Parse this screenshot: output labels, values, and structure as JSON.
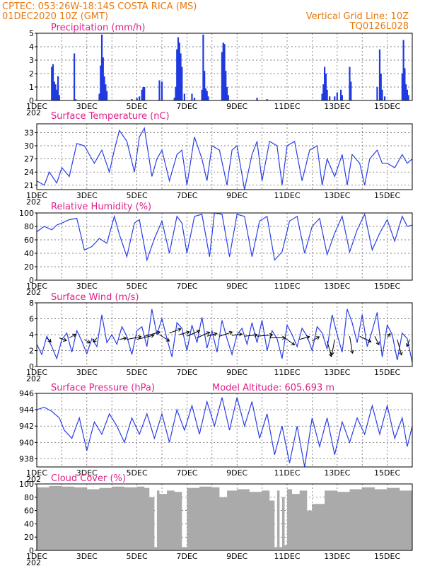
{
  "header": {
    "line1_left": "CPTEC:   053:26W-18:14S   COSTA RICA (MS)",
    "line2_left": "01DEC2020 10Z (GMT)",
    "line2_right": "Vertical Grid Line: 10Z",
    "line3_right": "TQ0126L028"
  },
  "colors": {
    "header": "#e87a10",
    "title": "#e0208a",
    "series": "#2a3ee8",
    "bars": "#1f3be0",
    "cloud": "#aaaaaa"
  },
  "x_axis": {
    "start_day": 1,
    "end_day": 16,
    "tick_labels": [
      {
        "day": 1,
        "label": "1DEC"
      },
      {
        "day": 3,
        "label": "3DEC"
      },
      {
        "day": 5,
        "label": "5DEC"
      },
      {
        "day": 7,
        "label": "7DEC"
      },
      {
        "day": 9,
        "label": "9DEC"
      },
      {
        "day": 11,
        "label": "11DEC"
      },
      {
        "day": 13,
        "label": "13DEC"
      },
      {
        "day": 15,
        "label": "15DEC"
      }
    ],
    "year_fragment": "202"
  },
  "chart_data": [
    {
      "type": "bar",
      "title": "Precipitation (mm/h)",
      "ylim": [
        0,
        5
      ],
      "yticks": [
        0,
        1,
        2,
        3,
        4,
        5
      ],
      "bars": [
        [
          1.6,
          2.5
        ],
        [
          1.65,
          2.7
        ],
        [
          1.7,
          1.4
        ],
        [
          1.75,
          1.2
        ],
        [
          1.8,
          0.8
        ],
        [
          1.85,
          1.8
        ],
        [
          1.9,
          0.4
        ],
        [
          2.5,
          3.5
        ],
        [
          2.55,
          0.1
        ],
        [
          3.5,
          0.5
        ],
        [
          3.55,
          2.6
        ],
        [
          3.6,
          4.9
        ],
        [
          3.65,
          3.2
        ],
        [
          3.7,
          1.8
        ],
        [
          3.75,
          1.2
        ],
        [
          3.8,
          0.7
        ],
        [
          4.8,
          0.1
        ],
        [
          5.0,
          0.2
        ],
        [
          5.1,
          0.3
        ],
        [
          5.2,
          0.8
        ],
        [
          5.25,
          1.0
        ],
        [
          5.3,
          1.0
        ],
        [
          5.9,
          1.5
        ],
        [
          6.0,
          1.4
        ],
        [
          6.5,
          0.2
        ],
        [
          6.55,
          1.0
        ],
        [
          6.6,
          3.8
        ],
        [
          6.65,
          4.7
        ],
        [
          6.7,
          4.3
        ],
        [
          6.75,
          3.5
        ],
        [
          6.8,
          2.5
        ],
        [
          6.9,
          0.5
        ],
        [
          7.2,
          0.5
        ],
        [
          7.3,
          0.2
        ],
        [
          7.6,
          0.8
        ],
        [
          7.65,
          4.9
        ],
        [
          7.7,
          2.2
        ],
        [
          7.75,
          0.9
        ],
        [
          7.8,
          0.7
        ],
        [
          7.85,
          0.3
        ],
        [
          8.4,
          3.6
        ],
        [
          8.45,
          4.3
        ],
        [
          8.5,
          4.2
        ],
        [
          8.55,
          2.2
        ],
        [
          8.6,
          1.0
        ],
        [
          8.65,
          0.4
        ],
        [
          9.8,
          0.2
        ],
        [
          10.2,
          0.1
        ],
        [
          12.4,
          0.5
        ],
        [
          12.45,
          1.2
        ],
        [
          12.5,
          2.5
        ],
        [
          12.55,
          2.0
        ],
        [
          12.6,
          0.8
        ],
        [
          12.7,
          0.3
        ],
        [
          12.9,
          0.3
        ],
        [
          13.0,
          0.6
        ],
        [
          13.15,
          0.8
        ],
        [
          13.2,
          0.4
        ],
        [
          13.5,
          2.5
        ],
        [
          13.55,
          1.4
        ],
        [
          14.6,
          1.0
        ],
        [
          14.7,
          3.8
        ],
        [
          14.75,
          2.0
        ],
        [
          14.8,
          0.8
        ],
        [
          14.9,
          0.3
        ],
        [
          15.6,
          2.0
        ],
        [
          15.65,
          4.5
        ],
        [
          15.7,
          2.4
        ],
        [
          15.75,
          1.2
        ],
        [
          15.8,
          0.8
        ],
        [
          15.85,
          0.4
        ]
      ]
    },
    {
      "type": "line",
      "title": "Surface Temperature (nC)",
      "ylim": [
        20,
        35
      ],
      "yticks": [
        21,
        24,
        27,
        30,
        33
      ],
      "x": [
        1,
        1.3,
        1.5,
        1.8,
        2.0,
        2.3,
        2.6,
        2.9,
        3.3,
        3.6,
        3.9,
        4.1,
        4.3,
        4.6,
        4.9,
        5.1,
        5.3,
        5.6,
        5.8,
        6.0,
        6.3,
        6.6,
        6.8,
        7.0,
        7.3,
        7.6,
        7.8,
        8.0,
        8.3,
        8.6,
        8.8,
        9.0,
        9.3,
        9.6,
        9.8,
        10.0,
        10.3,
        10.6,
        10.8,
        11.0,
        11.3,
        11.6,
        11.9,
        12.2,
        12.4,
        12.6,
        12.9,
        13.2,
        13.4,
        13.6,
        13.9,
        14.1,
        14.3,
        14.6,
        14.8,
        15.0,
        15.3,
        15.6,
        15.8,
        16.0
      ],
      "values": [
        22,
        21,
        24,
        21.5,
        25,
        23,
        30.5,
        30,
        26,
        29,
        24,
        29,
        33.5,
        31,
        24,
        32,
        34,
        23,
        27,
        29,
        22,
        28,
        29,
        21,
        32,
        27,
        22,
        30,
        29,
        21,
        29,
        30,
        20,
        28,
        31,
        22,
        31,
        30,
        21,
        30,
        31,
        22,
        29,
        30,
        21,
        27,
        23,
        28,
        21,
        28,
        26,
        21,
        27,
        29,
        26,
        26,
        25,
        28,
        26,
        27
      ]
    },
    {
      "type": "line",
      "title": "Relative Humidity (%)",
      "ylim": [
        0,
        100
      ],
      "yticks": [
        0,
        20,
        40,
        60,
        80,
        100
      ],
      "x": [
        1,
        1.3,
        1.6,
        1.8,
        2.0,
        2.3,
        2.6,
        2.9,
        3.2,
        3.5,
        3.8,
        4.1,
        4.3,
        4.6,
        4.9,
        5.1,
        5.4,
        5.7,
        6.0,
        6.3,
        6.6,
        6.8,
        7.0,
        7.3,
        7.6,
        7.9,
        8.1,
        8.4,
        8.7,
        9.0,
        9.3,
        9.6,
        9.9,
        10.2,
        10.5,
        10.8,
        11.1,
        11.4,
        11.7,
        12.0,
        12.3,
        12.6,
        12.9,
        13.2,
        13.5,
        13.8,
        14.1,
        14.4,
        14.7,
        15.0,
        15.3,
        15.6,
        15.8,
        16.0
      ],
      "values": [
        72,
        80,
        75,
        82,
        85,
        90,
        92,
        45,
        50,
        62,
        55,
        95,
        68,
        35,
        85,
        90,
        30,
        62,
        88,
        40,
        95,
        85,
        40,
        95,
        98,
        35,
        100,
        98,
        35,
        98,
        95,
        35,
        88,
        95,
        30,
        42,
        88,
        95,
        40,
        80,
        92,
        38,
        70,
        95,
        42,
        75,
        98,
        45,
        70,
        90,
        58,
        95,
        80,
        82
      ]
    },
    {
      "type": "line",
      "title": "Surface Wind (m/s)",
      "ylim": [
        0,
        8
      ],
      "yticks": [
        0,
        2,
        4,
        6,
        8
      ],
      "x": [
        1,
        1.2,
        1.4,
        1.6,
        1.8,
        2.0,
        2.2,
        2.4,
        2.6,
        2.8,
        3.0,
        3.2,
        3.4,
        3.6,
        3.8,
        4.0,
        4.2,
        4.4,
        4.6,
        4.8,
        5.0,
        5.2,
        5.4,
        5.6,
        5.8,
        6.0,
        6.2,
        6.4,
        6.6,
        6.8,
        7.0,
        7.2,
        7.4,
        7.6,
        7.8,
        8.0,
        8.2,
        8.4,
        8.6,
        8.8,
        9.0,
        9.2,
        9.4,
        9.6,
        9.8,
        10.0,
        10.2,
        10.4,
        10.6,
        10.8,
        11.0,
        11.2,
        11.4,
        11.6,
        11.8,
        12.0,
        12.2,
        12.4,
        12.6,
        12.8,
        13.0,
        13.2,
        13.4,
        13.6,
        13.8,
        14.0,
        14.2,
        14.4,
        14.6,
        14.8,
        15.0,
        15.2,
        15.4,
        15.6,
        15.8,
        16.0
      ],
      "values": [
        2.8,
        1.5,
        3.8,
        2.5,
        1.0,
        3.4,
        4.2,
        1.8,
        4.5,
        3.2,
        1.6,
        3.5,
        2.5,
        6.5,
        3.0,
        4.0,
        2.8,
        5.0,
        3.8,
        1.5,
        4.5,
        5.0,
        2.5,
        7.2,
        4.0,
        6.0,
        3.5,
        1.2,
        5.5,
        4.8,
        2.0,
        5.2,
        3.0,
        6.2,
        2.3,
        4.5,
        1.8,
        5.8,
        3.5,
        1.5,
        4.0,
        4.8,
        2.8,
        5.5,
        3.0,
        5.8,
        2.0,
        4.5,
        3.5,
        1.0,
        5.2,
        4.0,
        2.5,
        4.8,
        3.8,
        2.0,
        5.0,
        4.2,
        2.2,
        6.5,
        4.0,
        1.8,
        7.2,
        5.5,
        3.0,
        6.5,
        2.5,
        4.5,
        6.8,
        1.2,
        5.2,
        4.0,
        0.8,
        4.2,
        3.5,
        0.5
      ]
    },
    {
      "type": "line",
      "title": "Surface Pressure (hPa)",
      "annotation": "Model Altitude: 605.693  m",
      "ylim": [
        937,
        946
      ],
      "yticks": [
        938,
        940,
        942,
        944,
        946
      ],
      "x": [
        1,
        1.3,
        1.6,
        1.9,
        2.1,
        2.4,
        2.7,
        3.0,
        3.3,
        3.6,
        3.9,
        4.2,
        4.5,
        4.8,
        5.1,
        5.4,
        5.7,
        6.0,
        6.3,
        6.6,
        6.9,
        7.2,
        7.5,
        7.8,
        8.1,
        8.4,
        8.7,
        9.0,
        9.3,
        9.6,
        9.9,
        10.2,
        10.5,
        10.8,
        11.1,
        11.4,
        11.7,
        12.0,
        12.3,
        12.6,
        12.9,
        13.2,
        13.5,
        13.8,
        14.1,
        14.4,
        14.7,
        15.0,
        15.3,
        15.6,
        15.8,
        16.0
      ],
      "values": [
        944,
        944.3,
        943.8,
        943,
        941.5,
        940.5,
        943,
        939,
        942.5,
        941,
        943.5,
        942,
        940,
        943,
        941,
        943.5,
        940.5,
        943.5,
        940,
        944,
        941.5,
        944.5,
        941,
        945,
        942,
        945.5,
        941.5,
        945.5,
        942,
        945,
        940.5,
        943.5,
        938.5,
        942,
        937.5,
        942,
        937,
        943,
        939.5,
        943,
        938.5,
        942.5,
        940,
        943,
        941,
        944.5,
        941,
        944.5,
        940.5,
        943,
        939.5,
        942
      ]
    },
    {
      "type": "area",
      "title": "Cloud Cover (%)",
      "ylim": [
        0,
        100
      ],
      "yticks": [
        0,
        20,
        40,
        60,
        80,
        100
      ],
      "x": [
        1,
        1.5,
        2.0,
        2.5,
        3.0,
        3.5,
        4.0,
        4.5,
        5.0,
        5.3,
        5.5,
        5.7,
        5.8,
        5.9,
        6.2,
        6.5,
        6.8,
        7.0,
        7.5,
        8.0,
        8.3,
        8.6,
        9.0,
        9.5,
        10.0,
        10.3,
        10.5,
        10.6,
        10.7,
        10.8,
        10.9,
        11.0,
        11.2,
        11.5,
        11.8,
        12.0,
        12.5,
        13.0,
        13.5,
        14.0,
        14.5,
        15.0,
        15.5,
        16.0
      ],
      "values": [
        95,
        97,
        96,
        95,
        92,
        94,
        96,
        95,
        96,
        94,
        80,
        5,
        90,
        85,
        90,
        88,
        5,
        94,
        96,
        95,
        80,
        90,
        92,
        88,
        90,
        75,
        5,
        90,
        5,
        80,
        8,
        92,
        85,
        90,
        60,
        70,
        90,
        88,
        92,
        95,
        92,
        94,
        90,
        95
      ]
    }
  ]
}
